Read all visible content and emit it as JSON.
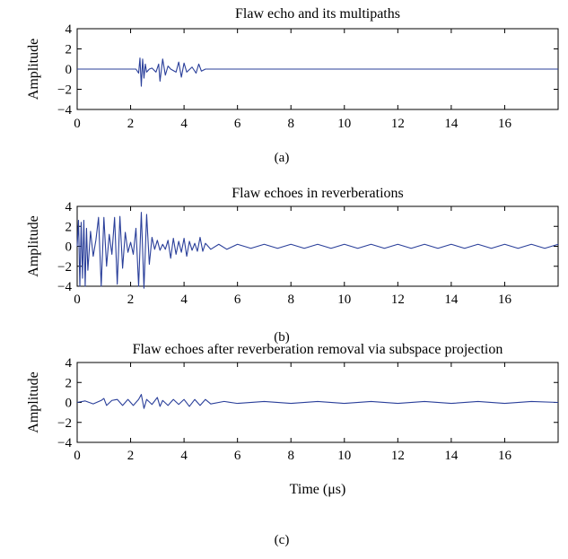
{
  "chart_data": [
    {
      "type": "line",
      "panel": "(a)",
      "title": "Flaw echo and its multipaths",
      "ylabel": "Amplitude",
      "xlabel": "",
      "xlim": [
        0,
        18
      ],
      "ylim": [
        -4,
        4
      ],
      "xticks": [
        0,
        2,
        4,
        6,
        8,
        10,
        12,
        14,
        16
      ],
      "yticks": [
        4,
        2,
        0,
        -2,
        -4
      ],
      "series_color": "#2a3f9a",
      "series": [
        {
          "x": [
            0,
            2.2,
            2.3,
            2.35,
            2.4,
            2.45,
            2.5,
            2.55,
            2.6,
            2.7,
            2.8,
            2.95,
            3.05,
            3.1,
            3.2,
            3.3,
            3.4,
            3.5,
            3.7,
            3.8,
            3.9,
            4.0,
            4.1,
            4.3,
            4.45,
            4.55,
            4.65,
            4.8,
            18
          ],
          "y": [
            0,
            0,
            -0.4,
            1.1,
            -1.7,
            1.0,
            -0.9,
            0.5,
            -0.3,
            0,
            0.1,
            -0.3,
            0.5,
            -1.2,
            1.0,
            -0.6,
            0.3,
            0,
            -0.3,
            0.7,
            -0.8,
            0.6,
            -0.3,
            0.2,
            -0.4,
            0.5,
            -0.2,
            0,
            0
          ]
        }
      ]
    },
    {
      "type": "line",
      "panel": "(b)",
      "title": "Flaw echoes in reverberations",
      "ylabel": "Amplitude",
      "xlabel": "",
      "xlim": [
        0,
        18
      ],
      "ylim": [
        -4,
        4
      ],
      "xticks": [
        0,
        2,
        4,
        6,
        8,
        10,
        12,
        14,
        16
      ],
      "yticks": [
        4,
        2,
        0,
        -2,
        -4
      ],
      "series_color": "#2a3f9a",
      "series": [
        {
          "x": [
            0,
            0.05,
            0.1,
            0.15,
            0.2,
            0.25,
            0.3,
            0.35,
            0.4,
            0.5,
            0.6,
            0.7,
            0.8,
            0.9,
            1.0,
            1.1,
            1.2,
            1.3,
            1.4,
            1.5,
            1.6,
            1.7,
            1.8,
            1.9,
            2.0,
            2.1,
            2.2,
            2.3,
            2.4,
            2.5,
            2.6,
            2.7,
            2.8,
            2.9,
            3.0,
            3.1,
            3.2,
            3.3,
            3.4,
            3.5,
            3.6,
            3.7,
            3.8,
            3.9,
            4.0,
            4.1,
            4.2,
            4.3,
            4.4,
            4.5,
            4.6,
            4.7,
            4.8,
            5.0,
            5.3,
            5.6,
            6.0,
            6.5,
            7.0,
            7.5,
            8.0,
            8.5,
            9.0,
            9.5,
            10.0,
            10.5,
            11.0,
            11.5,
            12.0,
            12.5,
            13.0,
            13.5,
            14.0,
            14.5,
            15.0,
            15.5,
            16.0,
            16.5,
            17.0,
            17.5,
            18
          ],
          "y": [
            0,
            2.6,
            -4.0,
            2.4,
            -3.2,
            2.6,
            -4.0,
            1.8,
            -2.4,
            1.5,
            -1.0,
            0.6,
            2.9,
            -4.0,
            2.9,
            -2.0,
            1.2,
            -0.8,
            2.9,
            -3.8,
            3.0,
            -2.2,
            1.4,
            -0.6,
            0.4,
            -0.8,
            1.8,
            -4.0,
            3.4,
            -4.2,
            3.2,
            -1.8,
            0.9,
            -0.3,
            0.6,
            -0.4,
            0.2,
            -0.3,
            0.6,
            -1.2,
            0.8,
            -0.8,
            0.5,
            -0.6,
            0.8,
            -1.0,
            0.5,
            -0.4,
            0.3,
            -0.5,
            0.9,
            -0.5,
            0.3,
            -0.3,
            0.2,
            -0.3,
            0.2,
            -0.2,
            0.2,
            -0.2,
            0.2,
            -0.2,
            0.2,
            -0.2,
            0.2,
            -0.2,
            0.2,
            -0.2,
            0.2,
            -0.2,
            0.2,
            -0.2,
            0.2,
            -0.2,
            0.2,
            -0.2,
            0.2,
            -0.2,
            0.2,
            -0.2,
            0.2
          ]
        }
      ]
    },
    {
      "type": "line",
      "panel": "(c)",
      "title": "Flaw echoes after reverberation removal via subspace projection",
      "ylabel": "Amplitude",
      "xlabel": "Time (μs)",
      "xlim": [
        0,
        18
      ],
      "ylim": [
        -4,
        4
      ],
      "xticks": [
        0,
        2,
        4,
        6,
        8,
        10,
        12,
        14,
        16
      ],
      "yticks": [
        4,
        2,
        0,
        -2,
        -4
      ],
      "series_color": "#2a3f9a",
      "series": [
        {
          "x": [
            0,
            0.3,
            0.6,
            0.9,
            1.0,
            1.1,
            1.3,
            1.5,
            1.7,
            1.9,
            2.1,
            2.3,
            2.4,
            2.5,
            2.6,
            2.8,
            3.0,
            3.1,
            3.2,
            3.4,
            3.6,
            3.8,
            4.0,
            4.2,
            4.4,
            4.6,
            4.8,
            5.0,
            5.5,
            6.0,
            7.0,
            8.0,
            9.0,
            10.0,
            11.0,
            12.0,
            13.0,
            14.0,
            15.0,
            16.0,
            17.0,
            18
          ],
          "y": [
            0,
            0.15,
            -0.15,
            0.2,
            0.4,
            -0.3,
            0.2,
            0.3,
            -0.3,
            0.3,
            -0.3,
            0.3,
            0.8,
            -0.6,
            0.3,
            -0.2,
            0.5,
            -0.4,
            0.2,
            -0.3,
            0.3,
            -0.2,
            0.3,
            -0.4,
            0.3,
            -0.3,
            0.3,
            -0.15,
            0.1,
            -0.1,
            0.1,
            -0.1,
            0.1,
            -0.1,
            0.1,
            -0.1,
            0.1,
            -0.1,
            0.1,
            -0.1,
            0.1,
            0
          ]
        }
      ]
    }
  ]
}
